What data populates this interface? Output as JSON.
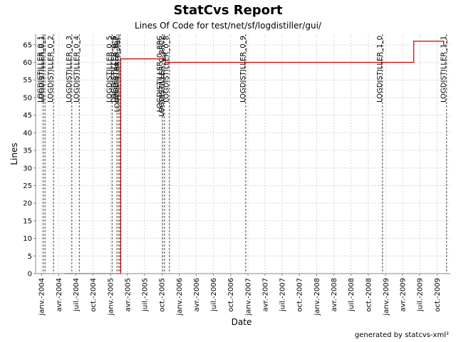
{
  "chart_data": {
    "type": "line",
    "title": "StatCvs Report",
    "subtitle": "Lines Of Code for test/net/sf/logdistiller/gui/",
    "xlabel": "Date",
    "ylabel": "Lines",
    "ylim": [
      0,
      68
    ],
    "xlim": [
      "2003-12-01",
      "2009-12-10"
    ],
    "grid": true,
    "yticks": [
      0,
      5,
      10,
      15,
      20,
      25,
      30,
      35,
      40,
      45,
      50,
      55,
      60,
      65
    ],
    "xticks": [
      {
        "date": "2004-01-01",
        "label": "janv.-2004"
      },
      {
        "date": "2004-04-01",
        "label": "avr.-2004"
      },
      {
        "date": "2004-07-01",
        "label": "juil.-2004"
      },
      {
        "date": "2004-10-01",
        "label": "oct.-2004"
      },
      {
        "date": "2005-01-01",
        "label": "janv.-2005"
      },
      {
        "date": "2005-04-01",
        "label": "avr.-2005"
      },
      {
        "date": "2005-07-01",
        "label": "juil.-2005"
      },
      {
        "date": "2005-10-01",
        "label": "oct.-2005"
      },
      {
        "date": "2006-01-01",
        "label": "janv.-2006"
      },
      {
        "date": "2006-04-01",
        "label": "avr.-2006"
      },
      {
        "date": "2006-07-01",
        "label": "juil.-2006"
      },
      {
        "date": "2006-10-01",
        "label": "oct.-2006"
      },
      {
        "date": "2007-01-01",
        "label": "janv.-2007"
      },
      {
        "date": "2007-04-01",
        "label": "avr.-2007"
      },
      {
        "date": "2007-07-01",
        "label": "juil.-2007"
      },
      {
        "date": "2007-10-01",
        "label": "oct.-2007"
      },
      {
        "date": "2008-01-01",
        "label": "janv.-2008"
      },
      {
        "date": "2008-04-01",
        "label": "avr.-2008"
      },
      {
        "date": "2008-07-01",
        "label": "juil.-2008"
      },
      {
        "date": "2008-10-01",
        "label": "oct.-2008"
      },
      {
        "date": "2009-01-01",
        "label": "janv.-2009"
      },
      {
        "date": "2009-04-01",
        "label": "avr.-2009"
      },
      {
        "date": "2009-07-01",
        "label": "juil.-2009"
      },
      {
        "date": "2009-10-01",
        "label": "oct.-2009"
      }
    ],
    "series": [
      {
        "color": "#cc0000",
        "step": true,
        "points": [
          {
            "x": "2004-05-03",
            "y": 0
          },
          {
            "x": "2005-02-25",
            "y": 0
          },
          {
            "x": "2005-02-25",
            "y": 61
          },
          {
            "x": "2005-10-20",
            "y": 61
          },
          {
            "x": "2005-10-20",
            "y": 60
          },
          {
            "x": "2009-05-30",
            "y": 60
          },
          {
            "x": "2009-05-30",
            "y": 66
          },
          {
            "x": "2009-11-05",
            "y": 66
          },
          {
            "x": "2009-11-05",
            "y": 65
          }
        ]
      }
    ],
    "annotations": [
      {
        "date": "2004-01-10",
        "label": "LOGDISTILLER_0_1"
      },
      {
        "date": "2004-01-20",
        "label": "LOGDISTILLER_0_1"
      },
      {
        "date": "2004-03-05",
        "label": "LOGDISTILLER_0_2"
      },
      {
        "date": "2004-06-10",
        "label": "LOGDISTILLER_0_3"
      },
      {
        "date": "2004-07-20",
        "label": "LOGDISTILLER_0_4"
      },
      {
        "date": "2005-01-10",
        "label": "LOGDISTILLER_0_5"
      },
      {
        "date": "2005-02-05",
        "label": "LOGDISTILLER_0_6"
      },
      {
        "date": "2005-02-15",
        "label": "LOGDISTILLER_0_7"
      },
      {
        "date": "2005-02-22",
        "label": "LOGDISTILLER_0_7RC"
      },
      {
        "date": "2005-10-05",
        "label": "LOGDISTILLER_0_8RC"
      },
      {
        "date": "2005-10-15",
        "label": "LOGDISTILLER_0_8RC2"
      },
      {
        "date": "2005-11-10",
        "label": "LOGDISTILLER_0_8"
      },
      {
        "date": "2006-12-20",
        "label": "LOGDISTILLER_0_9"
      },
      {
        "date": "2008-12-15",
        "label": "LOGDISTILLER_1_0"
      },
      {
        "date": "2009-11-20",
        "label": "LOGDISTILLER_1_1"
      }
    ]
  },
  "footer": "generated by statcvs-xml²"
}
